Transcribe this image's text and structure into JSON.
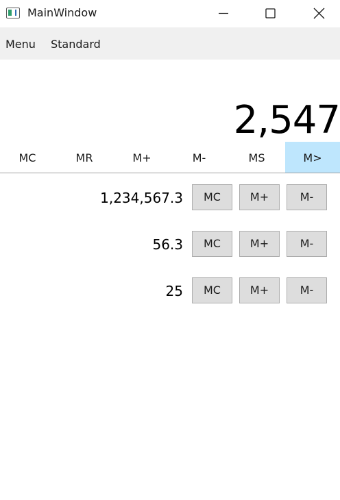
{
  "window": {
    "title": "MainWindow",
    "icons": {
      "app": "app-window-icon",
      "minimize": "minimize-icon",
      "maximize": "maximize-icon",
      "close": "close-icon"
    }
  },
  "menubar": {
    "menu_label": "Menu",
    "mode_label": "Standard"
  },
  "display": {
    "value": "2,547"
  },
  "memory_toolbar": {
    "items": [
      {
        "label": "MC"
      },
      {
        "label": "MR"
      },
      {
        "label": "M+"
      },
      {
        "label": "M-"
      },
      {
        "label": "MS"
      },
      {
        "label": "M>",
        "active": true
      }
    ],
    "active_color": "#bee6fd"
  },
  "memory_list": [
    {
      "value": "1,234,567.3",
      "buttons": [
        "MC",
        "M+",
        "M-"
      ]
    },
    {
      "value": "56.3",
      "buttons": [
        "MC",
        "M+",
        "M-"
      ]
    },
    {
      "value": "25",
      "buttons": [
        "MC",
        "M+",
        "M-"
      ]
    }
  ]
}
